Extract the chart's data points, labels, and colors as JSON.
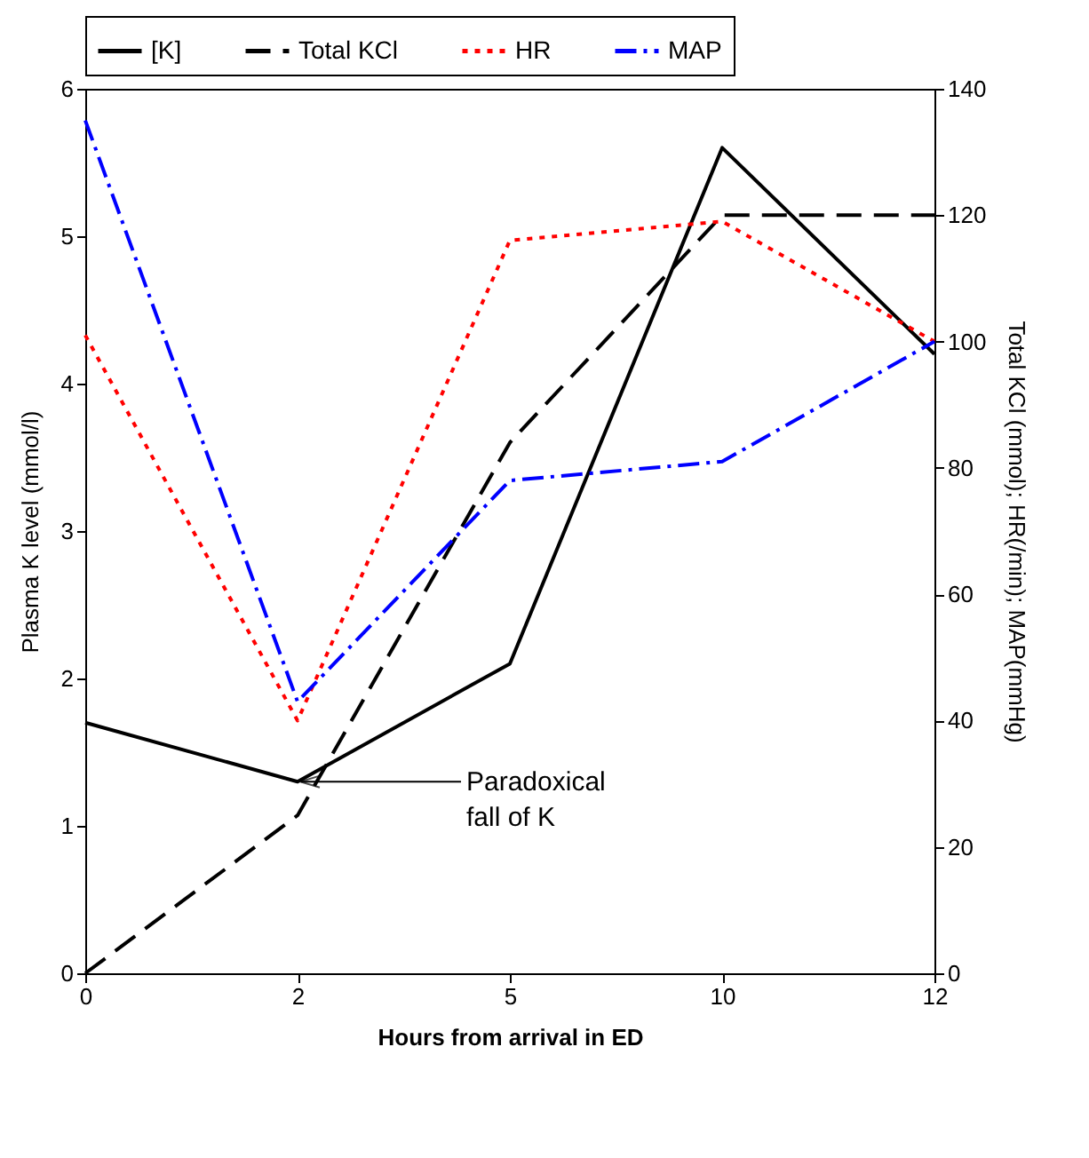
{
  "chart_data": {
    "type": "line",
    "xlabel": "Hours from arrival in ED",
    "ylabel": "Plasma K level (mmol/l)",
    "y2label": "Total KCl (mmol);  HR(/min); MAP(mmHg)",
    "categories": [
      "0",
      "2",
      "5",
      "10",
      "12"
    ],
    "series": [
      {
        "name": "[K]",
        "color": "#000000",
        "line_style": "solid",
        "values": [
          1.7,
          1.3,
          2.1,
          5.6,
          4.2
        ]
      },
      {
        "name": "Total KCl",
        "color": "#000000",
        "line_style": "dashed",
        "axis": "y2",
        "values": [
          0,
          25,
          84,
          120,
          120
        ]
      },
      {
        "name": "HR",
        "color": "#ff0000",
        "line_style": "dotted",
        "axis": "y2",
        "values": [
          101,
          40,
          116,
          119,
          100
        ]
      },
      {
        "name": "MAP",
        "color": "#0000ff",
        "line_style": "dashdot",
        "axis": "y2",
        "values": [
          135,
          43,
          78,
          81,
          100
        ]
      }
    ],
    "ylim": [
      0,
      6
    ],
    "yticks": [
      0,
      1,
      2,
      3,
      4,
      5,
      6
    ],
    "y2lim": [
      0,
      140
    ],
    "y2ticks": [
      0,
      20,
      40,
      60,
      80,
      100,
      120,
      140
    ],
    "annotations": [
      {
        "text": "Paradoxical fall of K",
        "x": "2",
        "y": 1.3
      }
    ],
    "legend": "top",
    "grid": false
  }
}
